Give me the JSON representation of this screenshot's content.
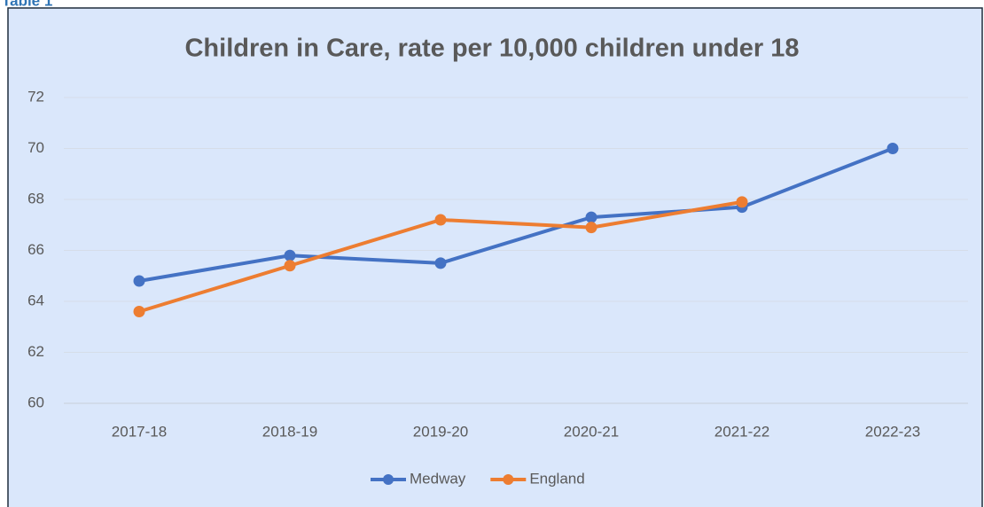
{
  "caption": "Table 1",
  "chart_data": {
    "type": "line",
    "title": "Children in Care, rate per 10,000 children under 18",
    "categories": [
      "2017-18",
      "2018-19",
      "2019-20",
      "2020-21",
      "2021-22",
      "2022-23"
    ],
    "series": [
      {
        "name": "Medway",
        "color": "#4472c4",
        "values": [
          64.8,
          65.8,
          65.5,
          67.3,
          67.7,
          70.0
        ]
      },
      {
        "name": "England",
        "color": "#ed7d31",
        "values": [
          63.6,
          65.4,
          67.2,
          66.9,
          67.9,
          null
        ]
      }
    ],
    "ylim": [
      60,
      72
    ],
    "yticks": [
      60,
      62,
      64,
      66,
      68,
      70,
      72
    ],
    "grid": true,
    "legend": "bottom"
  }
}
